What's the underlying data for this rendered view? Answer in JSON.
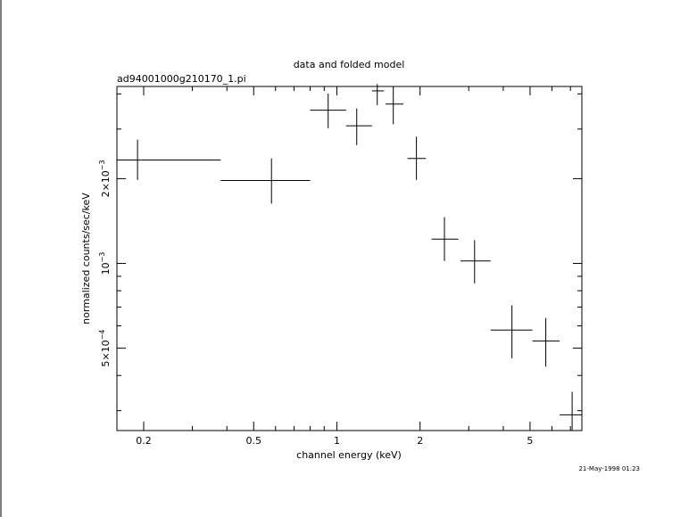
{
  "chart_data": {
    "type": "scatter",
    "title": "data and folded model",
    "subtitle": "ad94001000g210170_1.pi",
    "xlabel": "channel energy (keV)",
    "ylabel": "normalized counts/sec/keV",
    "xscale": "log",
    "yscale": "log",
    "xlim": [
      0.16,
      7.7
    ],
    "ylim": [
      0.000255,
      0.00425
    ],
    "x_ticks": [
      {
        "value": 0.2,
        "label": "0.2"
      },
      {
        "value": 0.5,
        "label": "0.5"
      },
      {
        "value": 1,
        "label": "1"
      },
      {
        "value": 2,
        "label": "2"
      },
      {
        "value": 5,
        "label": "5"
      }
    ],
    "y_ticks": [
      {
        "value": 0.0005,
        "mantissa": "5×10",
        "exponent": "−4"
      },
      {
        "value": 0.001,
        "mantissa": "10",
        "exponent": "−3"
      },
      {
        "value": 0.002,
        "mantissa": "2×10",
        "exponent": "−3"
      }
    ],
    "series": [
      {
        "points": [
          {
            "x": 0.19,
            "xlo": 0.16,
            "xhi": 0.38,
            "y": 0.00233,
            "ylo": 0.00198,
            "yhi": 0.00275
          },
          {
            "x": 0.58,
            "xlo": 0.38,
            "xhi": 0.8,
            "y": 0.00197,
            "ylo": 0.00163,
            "yhi": 0.00236
          },
          {
            "x": 0.93,
            "xlo": 0.8,
            "xhi": 1.08,
            "y": 0.0035,
            "ylo": 0.00302,
            "yhi": 0.00401
          },
          {
            "x": 1.18,
            "xlo": 1.08,
            "xhi": 1.34,
            "y": 0.00308,
            "ylo": 0.00263,
            "yhi": 0.00355
          },
          {
            "x": 1.4,
            "xlo": 1.34,
            "xhi": 1.48,
            "y": 0.0041,
            "ylo": 0.00365,
            "yhi": 0.00445
          },
          {
            "x": 1.6,
            "xlo": 1.5,
            "xhi": 1.74,
            "y": 0.00368,
            "ylo": 0.00312,
            "yhi": 0.00425
          },
          {
            "x": 1.94,
            "xlo": 1.8,
            "xhi": 2.1,
            "y": 0.00236,
            "ylo": 0.00198,
            "yhi": 0.00282
          },
          {
            "x": 2.45,
            "xlo": 2.2,
            "xhi": 2.75,
            "y": 0.00122,
            "ylo": 0.00102,
            "yhi": 0.00146
          },
          {
            "x": 3.15,
            "xlo": 2.8,
            "xhi": 3.6,
            "y": 0.00102,
            "ylo": 0.00085,
            "yhi": 0.00121
          },
          {
            "x": 4.3,
            "xlo": 3.6,
            "xhi": 5.1,
            "y": 0.00058,
            "ylo": 0.00046,
            "yhi": 0.00071
          },
          {
            "x": 5.7,
            "xlo": 5.1,
            "xhi": 6.4,
            "y": 0.00053,
            "ylo": 0.00043,
            "yhi": 0.00064
          },
          {
            "x": 7.1,
            "xlo": 6.4,
            "xhi": 7.7,
            "y": 0.00029,
            "ylo": 0.000255,
            "yhi": 0.00035
          }
        ]
      }
    ],
    "grid": false
  },
  "footer": {
    "timestamp": "21-May-1998 01:23"
  }
}
